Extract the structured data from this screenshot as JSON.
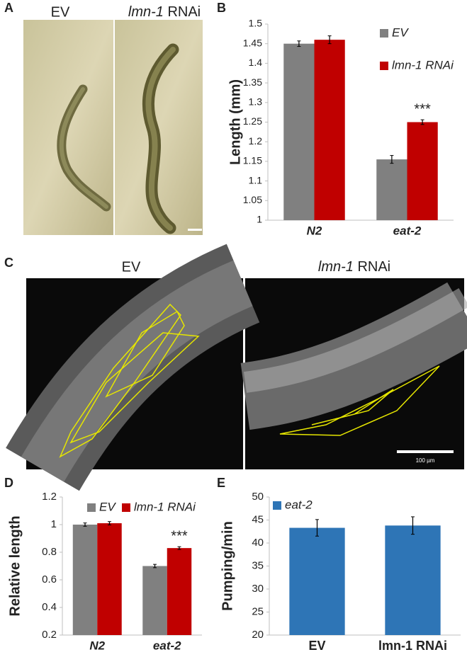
{
  "panels": [
    "A",
    "B",
    "C",
    "D",
    "E"
  ],
  "panel_a": {
    "left": "EV",
    "right": [
      "lmn-1",
      "RNAi"
    ]
  },
  "panel_c": {
    "left": "EV",
    "right": [
      "lmn-1",
      "RNAi"
    ],
    "scale_bar": "100 µm"
  },
  "chart_data": [
    {
      "type": "bar",
      "y_label": "Length (mm)",
      "categories": [
        "N2",
        "eat-2"
      ],
      "series": [
        {
          "name": "EV",
          "color": "#808080",
          "values": [
            1.45,
            1.155
          ],
          "errors": [
            0.007,
            0.01
          ]
        },
        {
          "name": "lmn-1 RNAi",
          "color": "#c00000",
          "values": [
            1.46,
            1.25
          ],
          "errors": [
            0.01,
            0.006
          ]
        }
      ],
      "annotation": "***",
      "ylim": [
        1,
        1.5
      ],
      "yticks": [
        1,
        1.05,
        1.1,
        1.15,
        1.2,
        1.25,
        1.3,
        1.35,
        1.4,
        1.45,
        1.5
      ],
      "grid": false
    },
    {
      "type": "bar",
      "y_label": "Relative length",
      "categories": [
        "N2",
        "eat-2"
      ],
      "series": [
        {
          "name": "EV",
          "color": "#808080",
          "values": [
            1.0,
            0.7
          ],
          "errors": [
            0.012,
            0.012
          ]
        },
        {
          "name": "lmn-1 RNAi",
          "color": "#c00000",
          "values": [
            1.01,
            0.83
          ],
          "errors": [
            0.012,
            0.01
          ]
        }
      ],
      "annotation": "***",
      "ylim": [
        0.2,
        1.2
      ],
      "yticks": [
        0.2,
        0.4,
        0.6,
        0.8,
        1,
        1.2
      ],
      "grid": false
    },
    {
      "type": "bar",
      "y_label": "Pumping/min",
      "categories": [
        "EV",
        "lmn-1 RNAi"
      ],
      "series": [
        {
          "name": "eat-2",
          "color": "#2e75b6",
          "values": [
            43.3,
            43.8
          ],
          "errors": [
            1.8,
            1.9
          ]
        }
      ],
      "ylim": [
        20,
        50
      ],
      "yticks": [
        20,
        25,
        30,
        35,
        40,
        45,
        50
      ],
      "grid": false
    }
  ]
}
